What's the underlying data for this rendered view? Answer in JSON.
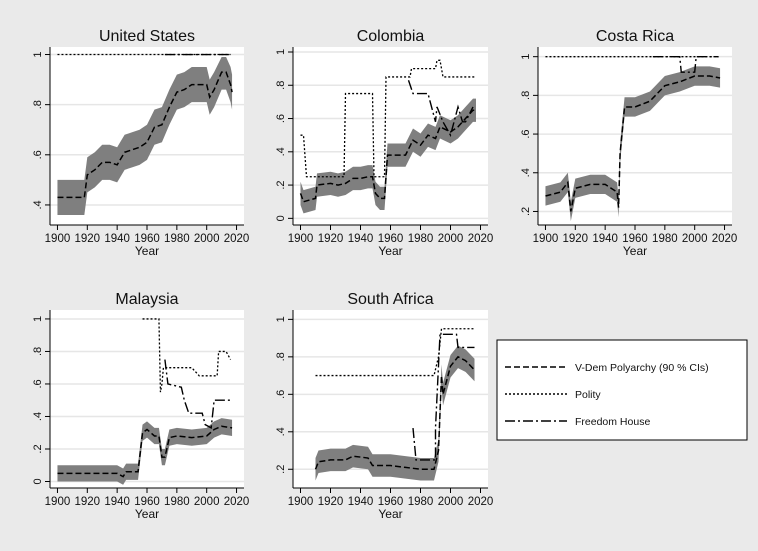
{
  "chart_data": {
    "type": "line",
    "xlabel": "Year",
    "xticks": [
      1900,
      1920,
      1940,
      1960,
      1980,
      2000,
      2020
    ],
    "legend": {
      "placement": "right",
      "entries": [
        {
          "name": "V-Dem Polyarchy (90 % CIs)",
          "style": "dashed"
        },
        {
          "name": "Polity",
          "style": "dotted"
        },
        {
          "name": "Freedom House",
          "style": "dash-dot"
        }
      ]
    },
    "band_color": "#7f7f7f",
    "panels": [
      {
        "title": "United States",
        "ylim": [
          0.32,
          1.03
        ],
        "yticks": [
          0.4,
          0.6,
          0.8,
          1
        ],
        "yticklabels": [
          ".4",
          ".6",
          ".8",
          "1"
        ],
        "vdem": [
          [
            1900,
            0.43
          ],
          [
            1910,
            0.43
          ],
          [
            1918,
            0.43
          ],
          [
            1920,
            0.52
          ],
          [
            1925,
            0.54
          ],
          [
            1930,
            0.57
          ],
          [
            1935,
            0.57
          ],
          [
            1940,
            0.56
          ],
          [
            1945,
            0.61
          ],
          [
            1950,
            0.62
          ],
          [
            1955,
            0.63
          ],
          [
            1960,
            0.65
          ],
          [
            1965,
            0.71
          ],
          [
            1970,
            0.72
          ],
          [
            1975,
            0.79
          ],
          [
            1980,
            0.85
          ],
          [
            1985,
            0.86
          ],
          [
            1990,
            0.88
          ],
          [
            1995,
            0.88
          ],
          [
            2000,
            0.88
          ],
          [
            2002,
            0.83
          ],
          [
            2005,
            0.86
          ],
          [
            2010,
            0.93
          ],
          [
            2013,
            0.93
          ],
          [
            2016,
            0.88
          ],
          [
            2017,
            0.85
          ]
        ],
        "band": 0.07,
        "polity": [
          [
            1900,
            1
          ],
          [
            2016,
            1
          ]
        ],
        "fh": [
          [
            1972,
            1
          ],
          [
            2016,
            1
          ]
        ]
      },
      {
        "title": "Colombia",
        "ylim": [
          -0.04,
          1.03
        ],
        "yticks": [
          0,
          0.2,
          0.4,
          0.6,
          0.8,
          1
        ],
        "yticklabels": [
          "0",
          ".2",
          ".4",
          ".6",
          ".8",
          "1"
        ],
        "vdem": [
          [
            1900,
            0.15
          ],
          [
            1902,
            0.1
          ],
          [
            1910,
            0.12
          ],
          [
            1911,
            0.2
          ],
          [
            1920,
            0.21
          ],
          [
            1925,
            0.2
          ],
          [
            1930,
            0.21
          ],
          [
            1935,
            0.24
          ],
          [
            1940,
            0.24
          ],
          [
            1945,
            0.25
          ],
          [
            1948,
            0.25
          ],
          [
            1950,
            0.15
          ],
          [
            1953,
            0.12
          ],
          [
            1956,
            0.12
          ],
          [
            1958,
            0.38
          ],
          [
            1965,
            0.38
          ],
          [
            1970,
            0.38
          ],
          [
            1975,
            0.47
          ],
          [
            1980,
            0.44
          ],
          [
            1985,
            0.5
          ],
          [
            1990,
            0.48
          ],
          [
            1993,
            0.55
          ],
          [
            2000,
            0.52
          ],
          [
            2005,
            0.55
          ],
          [
            2010,
            0.6
          ],
          [
            2015,
            0.65
          ],
          [
            2017,
            0.65
          ]
        ],
        "band": 0.07,
        "polity": [
          [
            1900,
            0.5
          ],
          [
            1902,
            0.5
          ],
          [
            1904,
            0.25
          ],
          [
            1929,
            0.25
          ],
          [
            1930,
            0.75
          ],
          [
            1948,
            0.75
          ],
          [
            1949,
            0.25
          ],
          [
            1956,
            0.25
          ],
          [
            1957,
            0.85
          ],
          [
            1973,
            0.85
          ],
          [
            1974,
            0.9
          ],
          [
            1990,
            0.9
          ],
          [
            1991,
            0.95
          ],
          [
            1993,
            0.95
          ],
          [
            1995,
            0.85
          ],
          [
            2016,
            0.85
          ]
        ],
        "fh": [
          [
            1972,
            0.83
          ],
          [
            1975,
            0.75
          ],
          [
            1985,
            0.75
          ],
          [
            1990,
            0.58
          ],
          [
            1991,
            0.67
          ],
          [
            1995,
            0.58
          ],
          [
            2000,
            0.5
          ],
          [
            2005,
            0.67
          ],
          [
            2008,
            0.58
          ],
          [
            2010,
            0.58
          ],
          [
            2015,
            0.67
          ]
        ]
      },
      {
        "title": "Costa Rica",
        "ylim": [
          0.13,
          1.05
        ],
        "yticks": [
          0.2,
          0.4,
          0.6,
          0.8,
          1
        ],
        "yticklabels": [
          ".2",
          ".4",
          ".6",
          ".8",
          "1"
        ],
        "vdem": [
          [
            1900,
            0.28
          ],
          [
            1910,
            0.3
          ],
          [
            1915,
            0.35
          ],
          [
            1917,
            0.2
          ],
          [
            1920,
            0.32
          ],
          [
            1930,
            0.34
          ],
          [
            1940,
            0.34
          ],
          [
            1948,
            0.3
          ],
          [
            1949,
            0.22
          ],
          [
            1950,
            0.5
          ],
          [
            1953,
            0.74
          ],
          [
            1960,
            0.74
          ],
          [
            1970,
            0.77
          ],
          [
            1980,
            0.85
          ],
          [
            1990,
            0.87
          ],
          [
            2000,
            0.9
          ],
          [
            2010,
            0.9
          ],
          [
            2017,
            0.89
          ]
        ],
        "band": 0.05,
        "polity": [
          [
            1900,
            1
          ],
          [
            2016,
            1
          ]
        ],
        "fh": [
          [
            1972,
            1
          ],
          [
            1990,
            1
          ],
          [
            1991,
            0.92
          ],
          [
            2000,
            0.92
          ],
          [
            2001,
            1
          ],
          [
            2016,
            1
          ]
        ]
      },
      {
        "title": "Malaysia",
        "ylim": [
          -0.04,
          1.055
        ],
        "yticks": [
          0,
          0.2,
          0.4,
          0.6,
          0.8,
          1
        ],
        "yticklabels": [
          "0",
          ".2",
          ".4",
          ".6",
          ".8",
          "1"
        ],
        "vdem": [
          [
            1900,
            0.05
          ],
          [
            1940,
            0.05
          ],
          [
            1944,
            0.03
          ],
          [
            1946,
            0.06
          ],
          [
            1954,
            0.06
          ],
          [
            1957,
            0.3
          ],
          [
            1960,
            0.32
          ],
          [
            1965,
            0.28
          ],
          [
            1968,
            0.28
          ],
          [
            1970,
            0.15
          ],
          [
            1972,
            0.15
          ],
          [
            1975,
            0.27
          ],
          [
            1980,
            0.28
          ],
          [
            1990,
            0.27
          ],
          [
            2000,
            0.28
          ],
          [
            2005,
            0.32
          ],
          [
            2010,
            0.34
          ],
          [
            2017,
            0.33
          ]
        ],
        "band": 0.05,
        "polity": [
          [
            1957,
            1
          ],
          [
            1968,
            1
          ],
          [
            1969,
            0.55
          ],
          [
            1970,
            0.6
          ],
          [
            1971,
            0.7
          ],
          [
            1990,
            0.7
          ],
          [
            1995,
            0.65
          ],
          [
            2007,
            0.65
          ],
          [
            2008,
            0.8
          ],
          [
            2013,
            0.8
          ],
          [
            2016,
            0.75
          ]
        ],
        "fh": [
          [
            1972,
            0.75
          ],
          [
            1974,
            0.6
          ],
          [
            1983,
            0.58
          ],
          [
            1985,
            0.5
          ],
          [
            1988,
            0.42
          ],
          [
            1997,
            0.42
          ],
          [
            1999,
            0.35
          ],
          [
            2003,
            0.33
          ],
          [
            2005,
            0.5
          ],
          [
            2016,
            0.5
          ]
        ]
      },
      {
        "title": "South Africa",
        "ylim": [
          0.1,
          1.05
        ],
        "yticks": [
          0.2,
          0.4,
          0.6,
          0.8,
          1
        ],
        "yticklabels": [
          ".2",
          ".4",
          ".6",
          ".8",
          "1"
        ],
        "vdem": [
          [
            1910,
            0.2
          ],
          [
            1912,
            0.24
          ],
          [
            1920,
            0.25
          ],
          [
            1930,
            0.25
          ],
          [
            1935,
            0.27
          ],
          [
            1945,
            0.26
          ],
          [
            1948,
            0.22
          ],
          [
            1960,
            0.22
          ],
          [
            1970,
            0.21
          ],
          [
            1980,
            0.2
          ],
          [
            1989,
            0.2
          ],
          [
            1992,
            0.3
          ],
          [
            1994,
            0.7
          ],
          [
            1995,
            0.6
          ],
          [
            2000,
            0.75
          ],
          [
            2005,
            0.8
          ],
          [
            2010,
            0.78
          ],
          [
            2016,
            0.73
          ]
        ],
        "band": 0.06,
        "polity": [
          [
            1910,
            0.7
          ],
          [
            1989,
            0.7
          ],
          [
            1992,
            0.8
          ],
          [
            1994,
            0.95
          ],
          [
            2016,
            0.95
          ]
        ],
        "fh": [
          [
            1975,
            0.42
          ],
          [
            1977,
            0.25
          ],
          [
            1990,
            0.25
          ],
          [
            1990,
            0.42
          ],
          [
            1993,
            0.92
          ],
          [
            2004,
            0.92
          ],
          [
            2005,
            0.85
          ],
          [
            2016,
            0.85
          ]
        ]
      }
    ]
  }
}
